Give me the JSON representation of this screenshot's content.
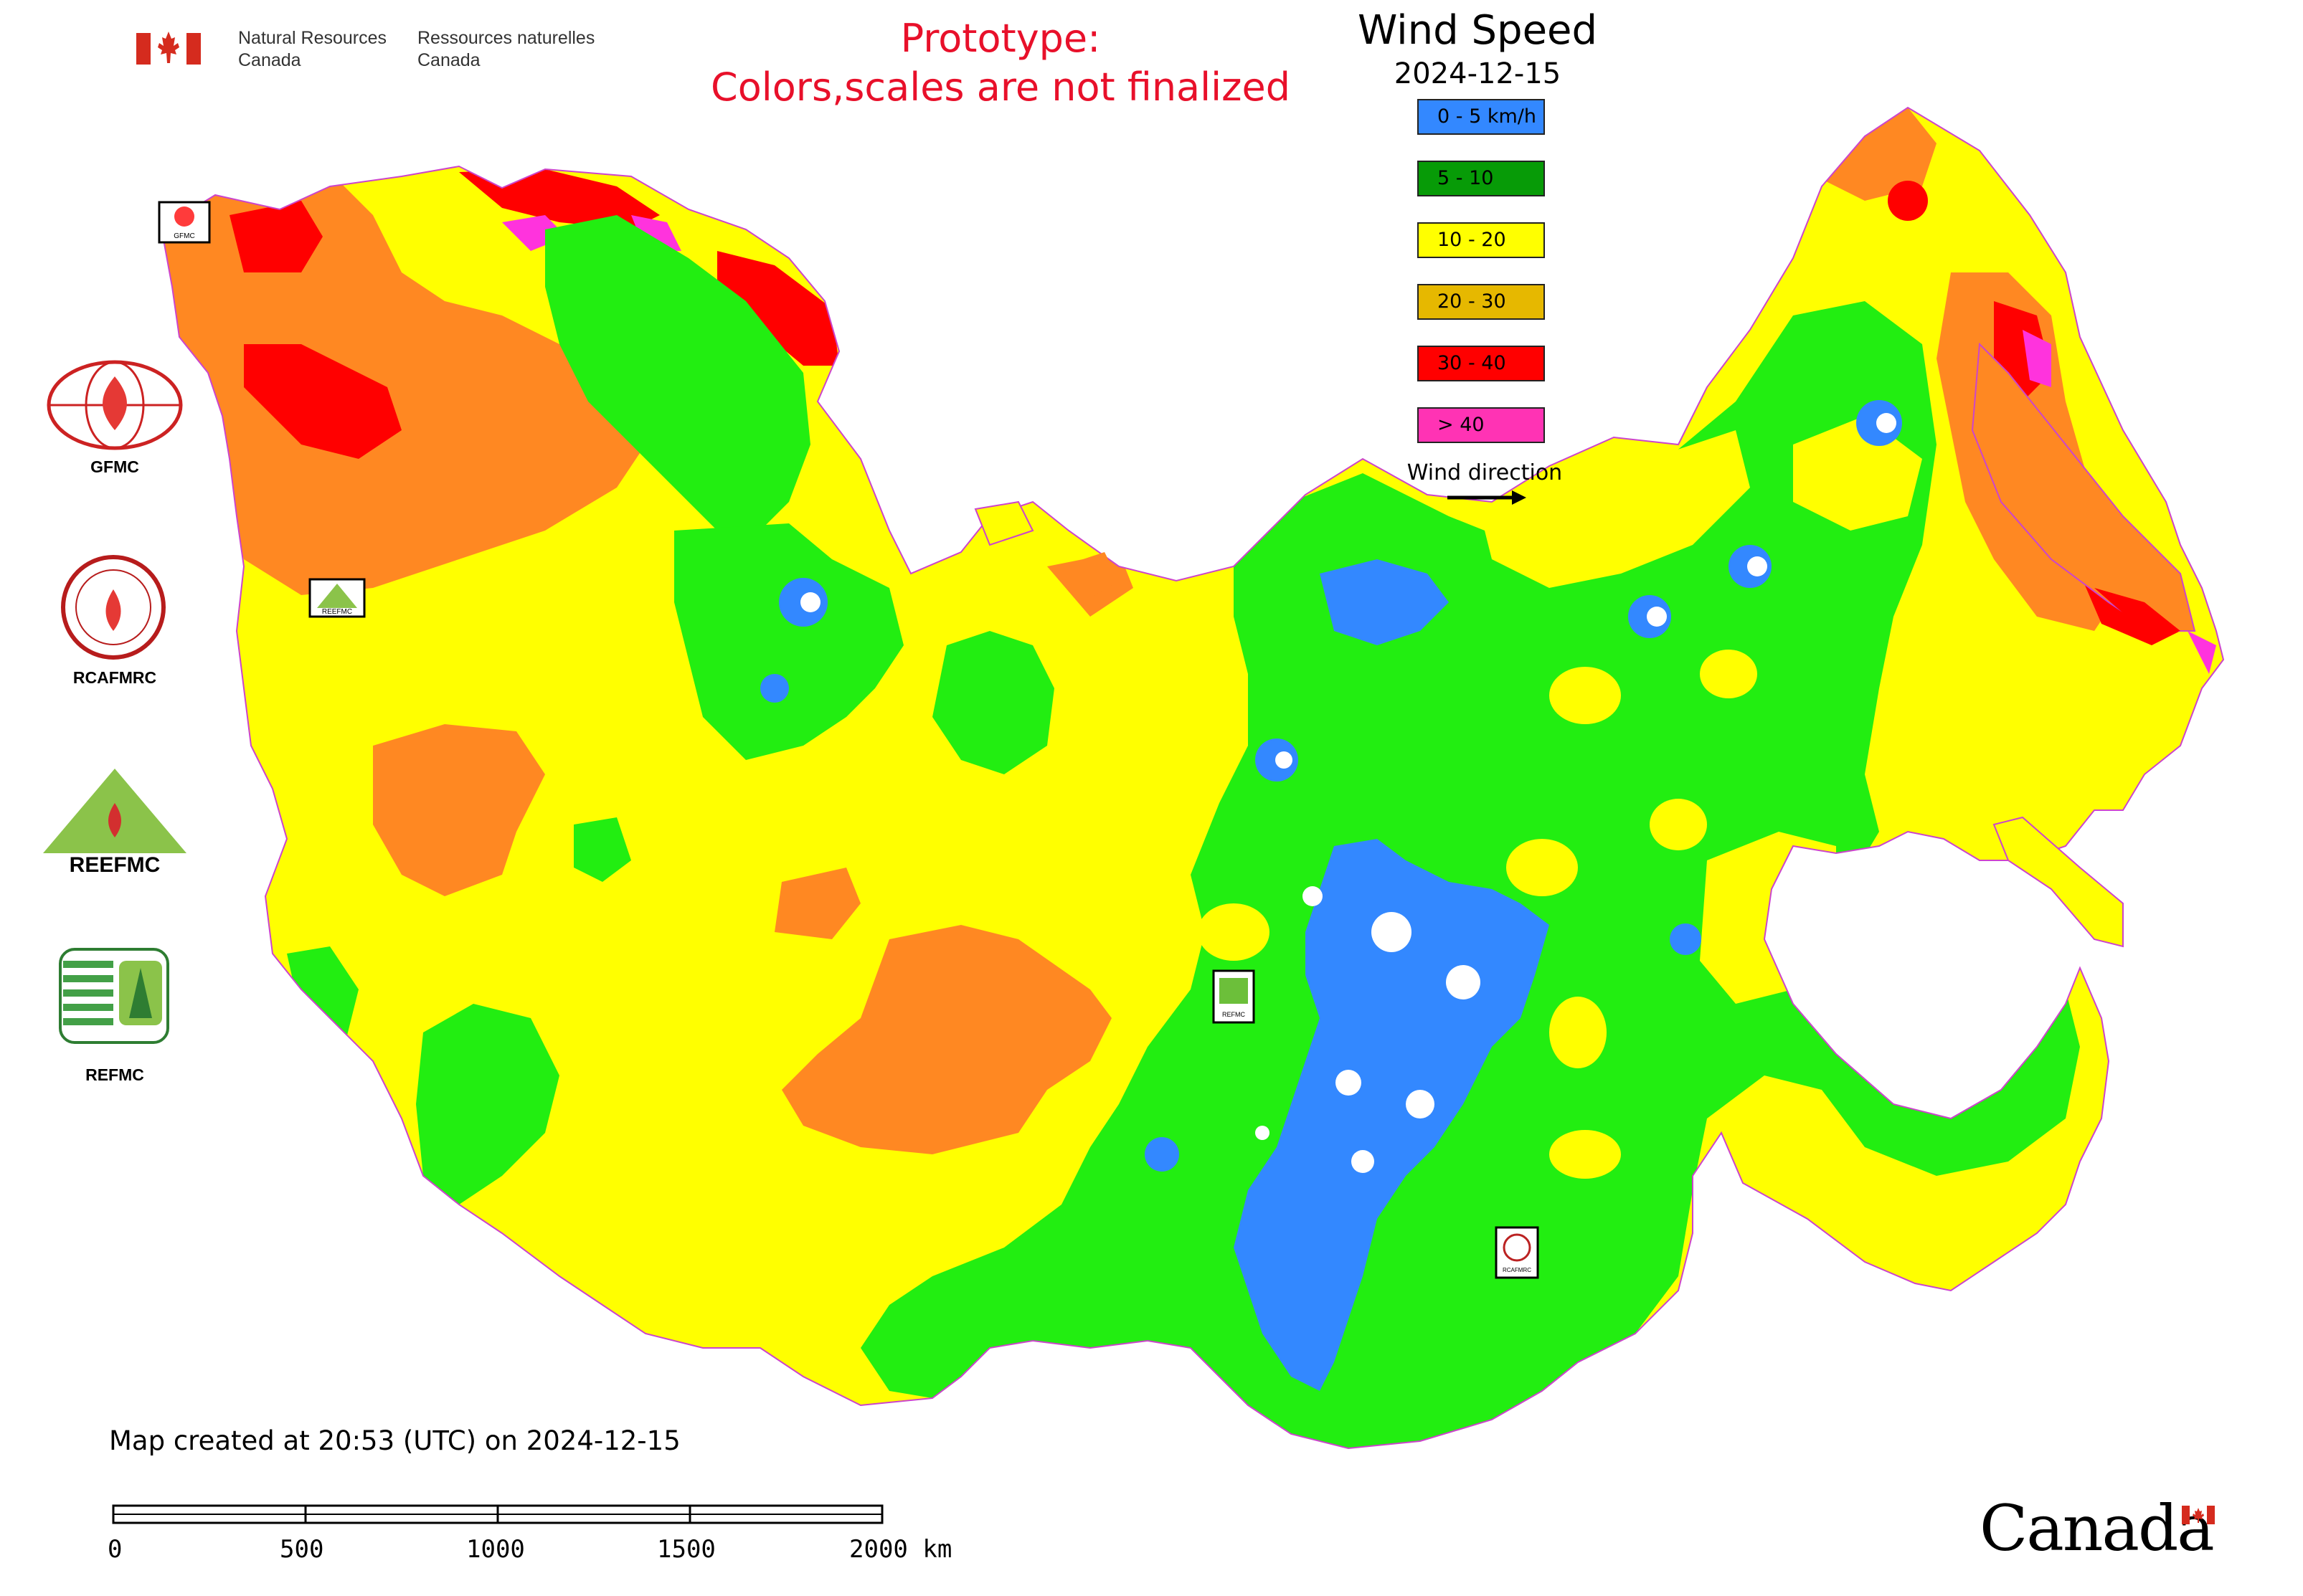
{
  "header": {
    "org_en_line1": "Natural Resources",
    "org_en_line2": "Canada",
    "org_fr_line1": "Ressources naturelles",
    "org_fr_line2": "Canada",
    "notice_line1": "Prototype:",
    "notice_line2": "Colors,scales are not finalized"
  },
  "legend": {
    "title": "Wind Speed",
    "date": "2024-12-15",
    "items": [
      {
        "label": "0 - 5 km/h",
        "color": "#3388ff"
      },
      {
        "label": "5 - 10",
        "color": "#079b07"
      },
      {
        "label": "10 - 20",
        "color": "#ffff00"
      },
      {
        "label": "20 - 30",
        "color": "#e6b800"
      },
      {
        "label": "30 - 40",
        "color": "#ff0000"
      },
      {
        "label": "> 40",
        "color": "#ff33b4"
      }
    ],
    "wind_direction_label": "Wind direction"
  },
  "map_colors": {
    "calm": "#3388ff",
    "light": "#22ee11",
    "moderate": "#ffff00",
    "fresh": "#ff8822",
    "strong": "#ff0000",
    "gale": "#ff33dd"
  },
  "logos": {
    "gfmc": "GFMC",
    "rcafmrc": "RCAFMRC",
    "reefmc": "REEFMC",
    "refmc": "REFMC",
    "map_marker_gfmc": "GFMC",
    "map_marker_reefmc": "REEFMC",
    "map_marker_refmc": "REFMC",
    "map_marker_rcafmrc": "RCAFMRC"
  },
  "footer": {
    "created": "Map created at 20:53 (UTC) on 2024-12-15",
    "scale_ticks": [
      "0",
      "500",
      "1000",
      "1500",
      "2000 km"
    ],
    "wordmark": "Canada"
  }
}
